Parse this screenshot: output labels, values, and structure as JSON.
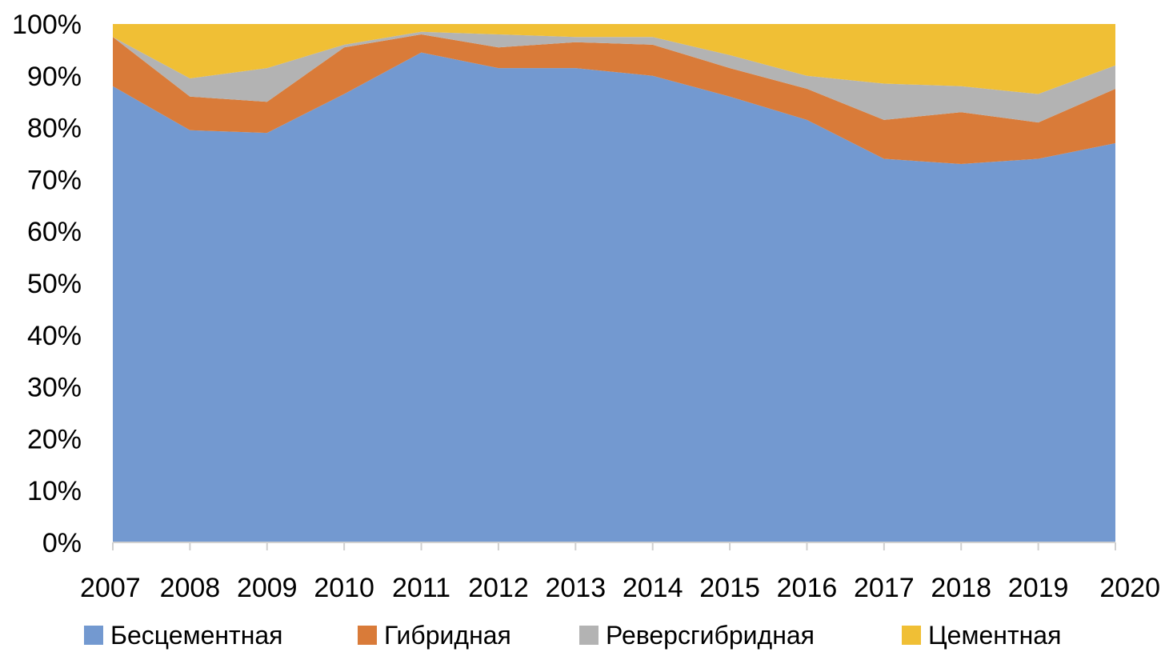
{
  "chart_data": {
    "type": "area",
    "stacked": "percent",
    "categories": [
      "2007",
      "2008",
      "2009",
      "2010",
      "2011",
      "2012",
      "2013",
      "2014",
      "2015",
      "2016",
      "2017",
      "2018",
      "2019",
      "2020"
    ],
    "series": [
      {
        "name": "Бесцементная",
        "color": "#7399d0",
        "values": [
          88,
          79.5,
          79,
          86.5,
          94.5,
          91.5,
          91.5,
          90,
          86,
          81.5,
          74,
          73,
          74,
          77
        ]
      },
      {
        "name": "Гибридная",
        "color": "#d97b39",
        "values": [
          9.5,
          6.5,
          6,
          9,
          3.5,
          4,
          5,
          6,
          5.5,
          6,
          7.5,
          10,
          7,
          10.5
        ]
      },
      {
        "name": "Реверсгибридная",
        "color": "#b3b3b3",
        "values": [
          0,
          3.5,
          6.5,
          0.5,
          0.5,
          2.5,
          1,
          1.5,
          2.5,
          2.5,
          7,
          5,
          5.5,
          4.5
        ]
      },
      {
        "name": "Цементная",
        "color": "#f0bf35",
        "values": [
          2.5,
          10.5,
          8.5,
          4,
          1.5,
          2,
          2.5,
          2.5,
          6,
          10,
          11.5,
          12,
          13.5,
          8
        ]
      }
    ],
    "yticks": [
      "0%",
      "10%",
      "20%",
      "30%",
      "40%",
      "50%",
      "60%",
      "70%",
      "80%",
      "90%",
      "100%"
    ],
    "ylim": [
      0,
      100
    ],
    "grid": false,
    "legend_position": "bottom",
    "title": "",
    "xlabel": "",
    "ylabel": ""
  }
}
